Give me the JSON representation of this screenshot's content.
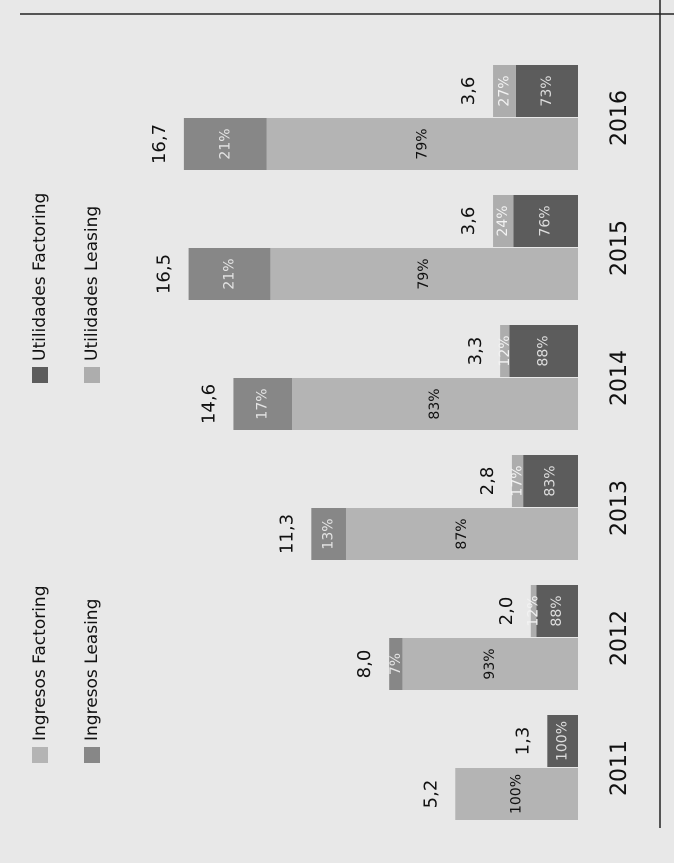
{
  "chart_data": {
    "type": "stacked-bar",
    "categories": [
      "2011",
      "2012",
      "2013",
      "2014",
      "2015",
      "2016"
    ],
    "stacks": [
      {
        "totals": [
          5.2,
          8.0,
          11.3,
          14.6,
          16.5,
          16.7
        ],
        "total_labels": [
          "5,2",
          "8,0",
          "11,3",
          "14,6",
          "16,5",
          "16,7"
        ],
        "series": [
          {
            "name": "Ingresos Factoring",
            "color": "#b4b4b4",
            "label_color": "#111111",
            "values": [
              100,
              93,
              87,
              83,
              79,
              79
            ],
            "value_labels": [
              "100%",
              "93%",
              "87%",
              "83%",
              "79%",
              "79%"
            ]
          },
          {
            "name": "Ingresos Leasing",
            "color": "#878787",
            "label_color": "#e4e4e4",
            "values": [
              null,
              7,
              13,
              17,
              21,
              21
            ],
            "value_labels": [
              null,
              "7%",
              "13%",
              "17%",
              "21%",
              "21%"
            ]
          }
        ]
      },
      {
        "totals": [
          1.3,
          2.0,
          2.8,
          3.3,
          3.6,
          3.6
        ],
        "total_labels": [
          "1,3",
          "2,0",
          "2,8",
          "3,3",
          "3,6",
          "3,6"
        ],
        "series": [
          {
            "name": "Utilidades Factoring",
            "color": "#5c5c5c",
            "label_color": "#dddddd",
            "values": [
              100,
              88,
              83,
              88,
              76,
              73
            ],
            "value_labels": [
              "100%",
              "88%",
              "83%",
              "88%",
              "76%",
              "73%"
            ]
          },
          {
            "name": "Utilidades Leasing",
            "color": "#adadad",
            "label_color": "#f2f2f2",
            "values": [
              null,
              12,
              17,
              12,
              24,
              27
            ],
            "value_labels": [
              null,
              "12%",
              "17%",
              "12%",
              "24%",
              "27%"
            ]
          }
        ]
      }
    ]
  }
}
